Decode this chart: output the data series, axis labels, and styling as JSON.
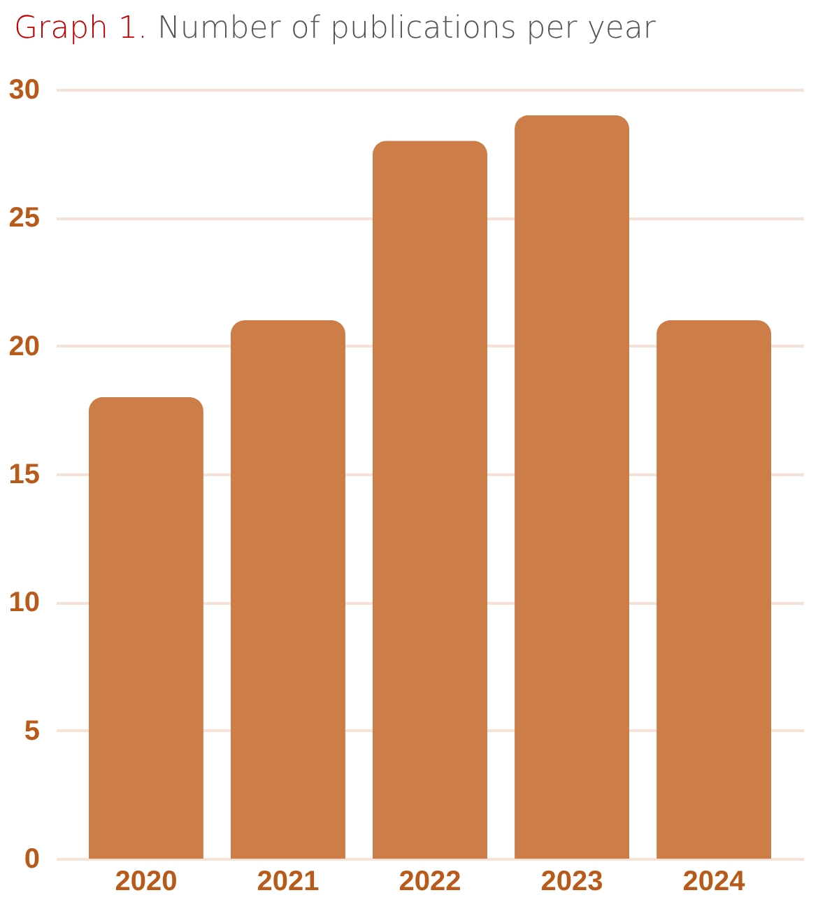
{
  "chart_data": {
    "type": "bar",
    "title": "Graph 1. Number of publications per year",
    "categories": [
      "2020",
      "2021",
      "2022",
      "2023",
      "2024"
    ],
    "values": [
      18,
      21,
      28,
      29,
      21
    ],
    "color": "#cd7e48",
    "ylim": [
      0,
      30
    ],
    "yticks": [
      0,
      5,
      10,
      15,
      20,
      25,
      30
    ],
    "grid": "y"
  }
}
